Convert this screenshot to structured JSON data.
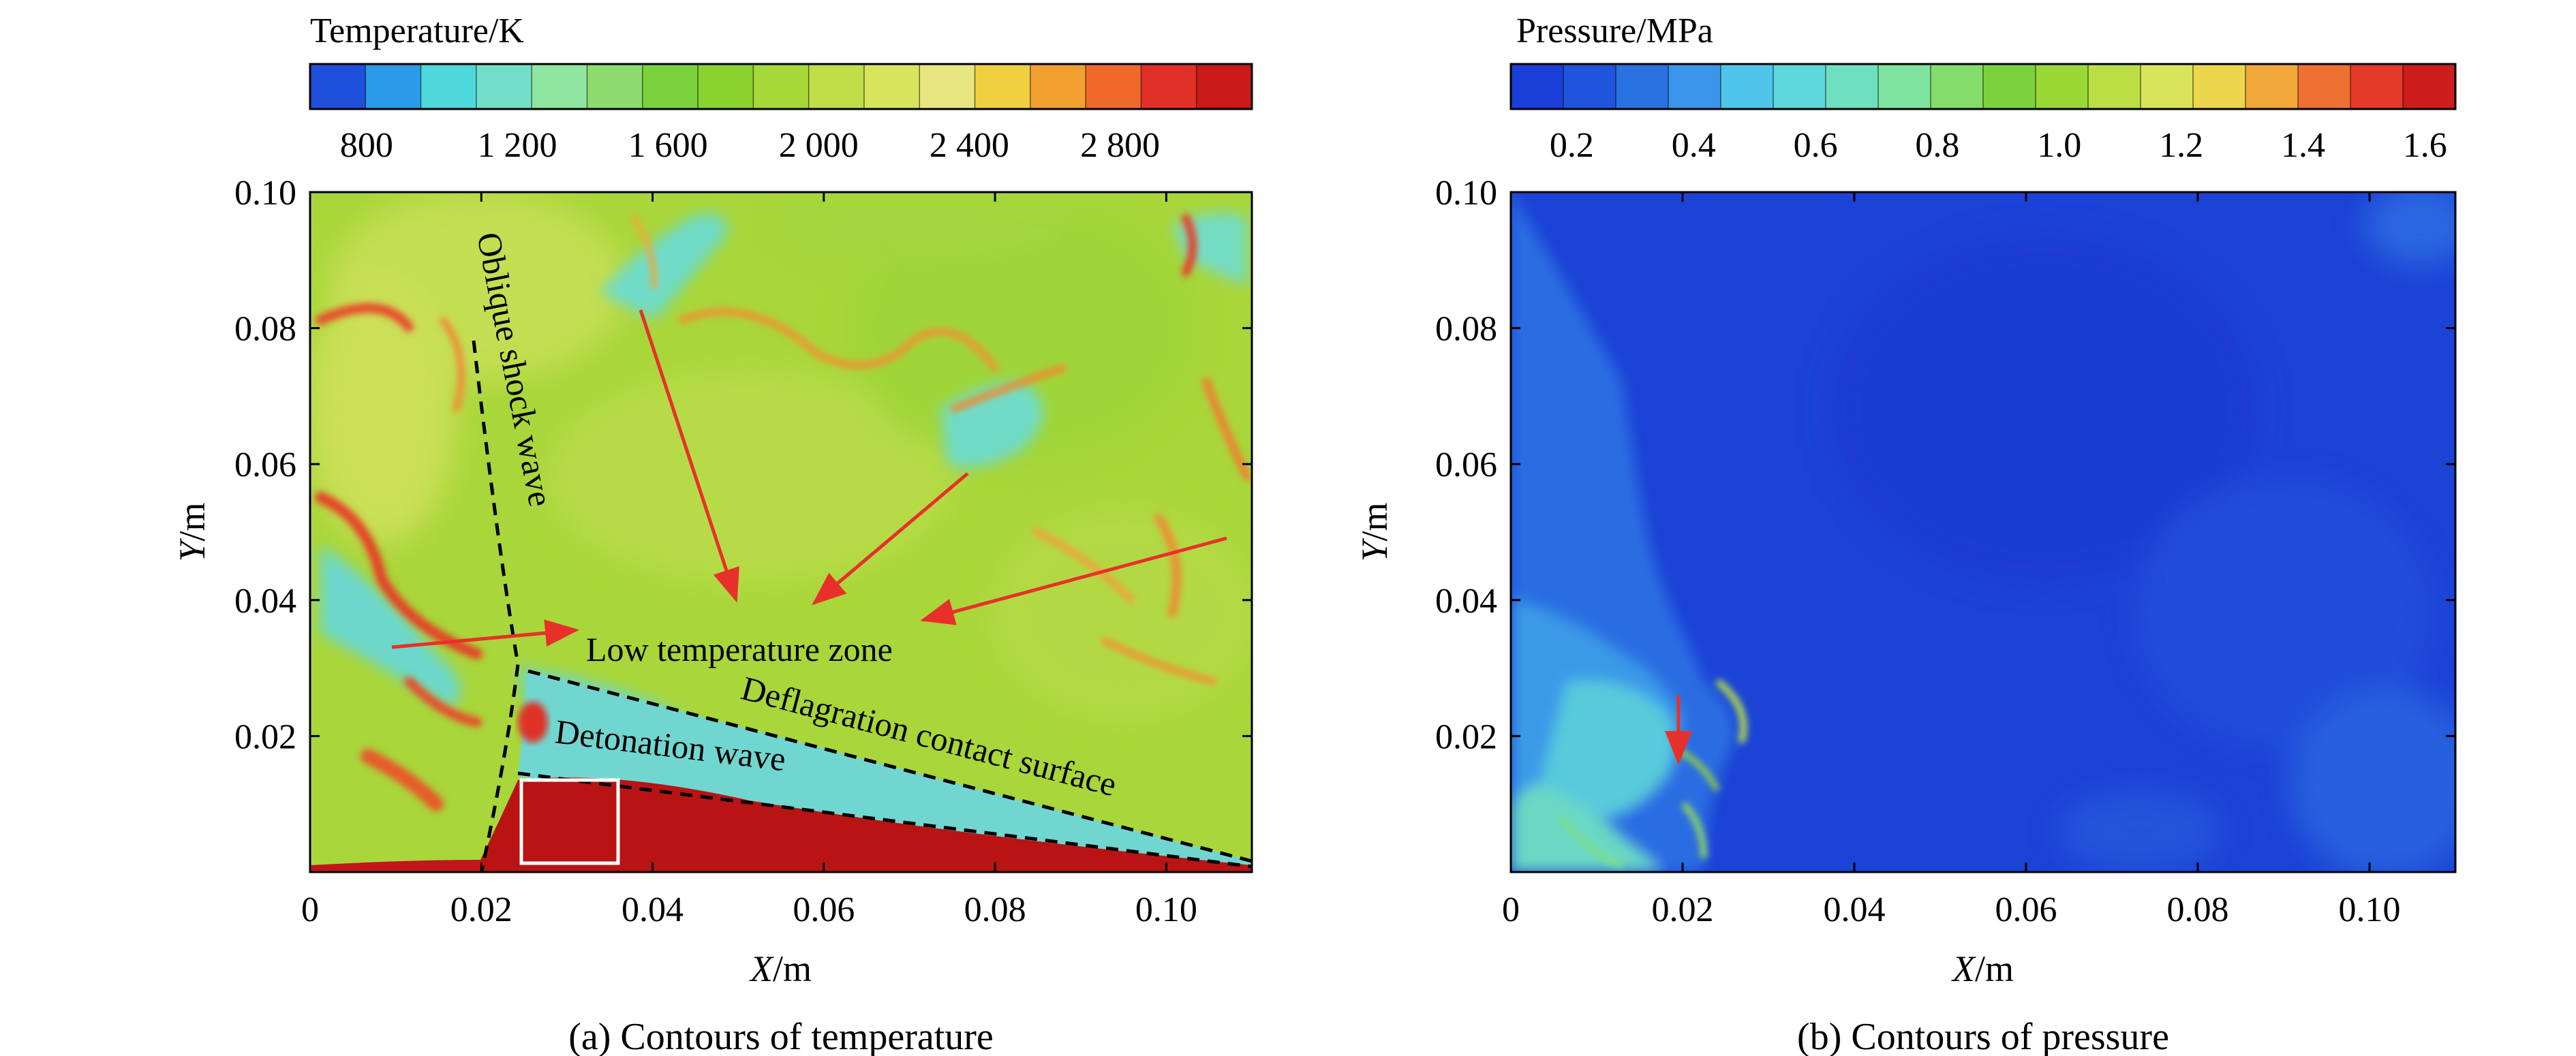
{
  "chart_data": [
    {
      "type": "heatmap",
      "colorbar": {
        "title": "Temperature/K",
        "ticks": [
          "800",
          "1 200",
          "1 600",
          "2 000",
          "2 400",
          "2 800"
        ],
        "tick_values": [
          800,
          1200,
          1600,
          2000,
          2400,
          2800
        ],
        "range": [
          650,
          3150
        ],
        "colors": [
          "#1e50dc",
          "#2a9be8",
          "#4fd8dc",
          "#72e0c8",
          "#8fe6a0",
          "#8edc70",
          "#7cd23c",
          "#8ad22e",
          "#a6d838",
          "#c0de48",
          "#d8e45c",
          "#e8e680",
          "#f0d040",
          "#f2a030",
          "#ef6a2a",
          "#e03028",
          "#c81a18"
        ]
      },
      "xlabel_var": "X",
      "xlabel_unit": "/m",
      "ylabel_var": "Y",
      "ylabel_unit": "/m",
      "xlim": [
        0,
        0.11
      ],
      "ylim": [
        0,
        0.1
      ],
      "x_ticks": [
        {
          "value": 0,
          "label": "0"
        },
        {
          "value": 0.02,
          "label": "0.02"
        },
        {
          "value": 0.04,
          "label": "0.04"
        },
        {
          "value": 0.06,
          "label": "0.06"
        },
        {
          "value": 0.08,
          "label": "0.08"
        },
        {
          "value": 0.1,
          "label": "0.10"
        }
      ],
      "y_ticks": [
        {
          "value": 0.02,
          "label": "0.02"
        },
        {
          "value": 0.04,
          "label": "0.04"
        },
        {
          "value": 0.06,
          "label": "0.06"
        },
        {
          "value": 0.08,
          "label": "0.08"
        },
        {
          "value": 0.1,
          "label": "0.10"
        }
      ],
      "annotations": {
        "oblique_shock": "Oblique shock wave",
        "low_temp": "Low temperature zone",
        "deflagration": "Deflagration contact surface",
        "detonation": "Detonation wave"
      },
      "caption": "(a) Contours of temperature"
    },
    {
      "type": "heatmap",
      "colorbar": {
        "title": "Pressure/MPa",
        "ticks": [
          "0.2",
          "0.4",
          "0.6",
          "0.8",
          "1.0",
          "1.2",
          "1.4",
          "1.6"
        ],
        "tick_values": [
          0.2,
          0.4,
          0.6,
          0.8,
          1.0,
          1.2,
          1.4,
          1.6
        ],
        "range": [
          0.1,
          1.65
        ],
        "colors": [
          "#1a3fd8",
          "#1f55dc",
          "#2a72e2",
          "#3a96ea",
          "#4ec6ec",
          "#5ed8dc",
          "#6ee0c0",
          "#7ee4a0",
          "#84dc6a",
          "#7cd23c",
          "#9ad836",
          "#bade44",
          "#dae45a",
          "#ecd64c",
          "#f2a838",
          "#ef7030",
          "#e33a2a",
          "#cc1c1c"
        ]
      },
      "xlabel_var": "X",
      "xlabel_unit": "/m",
      "ylabel_var": "Y",
      "ylabel_unit": "/m",
      "xlim": [
        0,
        0.11
      ],
      "ylim": [
        0,
        0.1
      ],
      "x_ticks": [
        {
          "value": 0,
          "label": "0"
        },
        {
          "value": 0.02,
          "label": "0.02"
        },
        {
          "value": 0.04,
          "label": "0.04"
        },
        {
          "value": 0.06,
          "label": "0.06"
        },
        {
          "value": 0.08,
          "label": "0.08"
        },
        {
          "value": 0.1,
          "label": "0.10"
        }
      ],
      "y_ticks": [
        {
          "value": 0.02,
          "label": "0.02"
        },
        {
          "value": 0.04,
          "label": "0.04"
        },
        {
          "value": 0.06,
          "label": "0.06"
        },
        {
          "value": 0.08,
          "label": "0.08"
        },
        {
          "value": 0.1,
          "label": "0.10"
        }
      ],
      "caption": "(b) Contours of pressure"
    }
  ],
  "colors": {
    "arrow": "#e8302a",
    "detonation_region": "#b81414",
    "box": "#ffffff"
  }
}
